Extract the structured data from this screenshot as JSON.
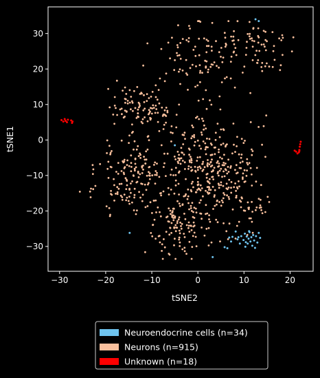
{
  "chart_data": {
    "type": "scatter",
    "title": "",
    "xlabel": "tSNE2",
    "ylabel": "tSNE1",
    "xlim": [
      -32.5,
      25
    ],
    "ylim": [
      -37,
      37.5
    ],
    "xticks": [
      -30,
      -20,
      -10,
      0,
      10,
      20
    ],
    "yticks": [
      -30,
      -20,
      -10,
      0,
      10,
      20,
      30
    ],
    "grid": false,
    "background": "#000000",
    "legend_position": "bottom-center",
    "series": [
      {
        "name": "Neuroendocrine cells (n=34)",
        "color": "#6ec3ee",
        "points": [
          [
            12.5,
            34
          ],
          [
            13.2,
            33.5
          ],
          [
            -5,
            -1.5
          ],
          [
            -14.8,
            -26.2
          ],
          [
            3.2,
            -33
          ],
          [
            5.8,
            -30.2
          ],
          [
            6.4,
            -30.5
          ],
          [
            6.8,
            -27.5
          ],
          [
            7.5,
            -27.3
          ],
          [
            8.2,
            -25.8
          ],
          [
            8.8,
            -27.4
          ],
          [
            9.4,
            -27.1
          ],
          [
            9.9,
            -28.2
          ],
          [
            10.2,
            -26.4
          ],
          [
            10.4,
            -28.8
          ],
          [
            10.6,
            -27.2
          ],
          [
            10.8,
            -29.2
          ],
          [
            11.0,
            -27.8
          ],
          [
            11.2,
            -26.0
          ],
          [
            11.4,
            -28.6
          ],
          [
            11.6,
            -27.4
          ],
          [
            11.8,
            -29.8
          ],
          [
            12.0,
            -26.8
          ],
          [
            12.2,
            -28.3
          ],
          [
            12.4,
            -30.4
          ],
          [
            12.6,
            -27.1
          ],
          [
            12.9,
            -28.9
          ],
          [
            13.2,
            -26.2
          ],
          [
            9.1,
            -29.2
          ],
          [
            10.3,
            -30.1
          ],
          [
            11.1,
            -25.7
          ],
          [
            8.6,
            -28.0
          ],
          [
            7.2,
            -28.6
          ],
          [
            13.5,
            -27.6
          ]
        ]
      },
      {
        "name": "Neurons (n=915)",
        "color": "#f9c09d",
        "count": 915
      },
      {
        "name": "Unknown (n=18)",
        "color": "#ff0000",
        "points": [
          [
            -29.6,
            5.6
          ],
          [
            -29.2,
            5.2
          ],
          [
            -28.9,
            5.9
          ],
          [
            -28.7,
            5.4
          ],
          [
            -28.4,
            5.0
          ],
          [
            -28.2,
            5.7
          ],
          [
            -27.5,
            5.5
          ],
          [
            -27.3,
            4.8
          ],
          [
            -27.2,
            5.2
          ],
          [
            21.0,
            -3.0
          ],
          [
            21.3,
            -3.3
          ],
          [
            21.6,
            -3.8
          ],
          [
            21.9,
            -3.5
          ],
          [
            22.0,
            -2.8
          ],
          [
            22.1,
            -1.9
          ],
          [
            22.2,
            -1.2
          ],
          [
            22.3,
            -0.5
          ],
          [
            22.0,
            -3.1
          ]
        ]
      }
    ]
  }
}
